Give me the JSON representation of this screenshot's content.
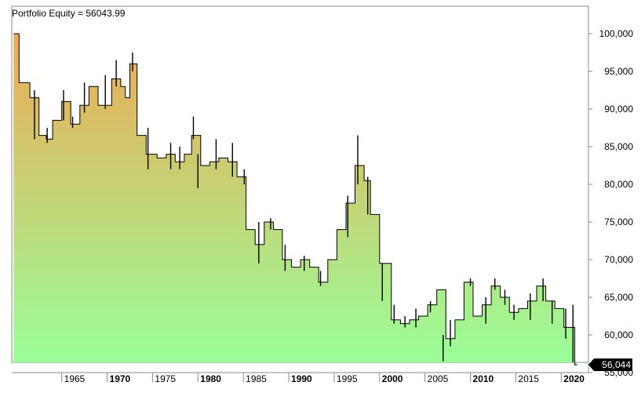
{
  "chart_data": {
    "type": "area",
    "title": "Portfolio Equity = 56043.99",
    "xlabel": "",
    "ylabel": "",
    "last_value_label": "56,044",
    "x_range": [
      1959.5,
      2023
    ],
    "y_range": [
      55000,
      102600
    ],
    "y_ticks": [
      {
        "value": 55000,
        "label": "55,000"
      },
      {
        "value": 60000,
        "label": "60,000"
      },
      {
        "value": 65000,
        "label": "65,000"
      },
      {
        "value": 70000,
        "label": "70,000"
      },
      {
        "value": 75000,
        "label": "75,000"
      },
      {
        "value": 80000,
        "label": "80,000"
      },
      {
        "value": 85000,
        "label": "85,000"
      },
      {
        "value": 90000,
        "label": "90,000"
      },
      {
        "value": 95000,
        "label": "95,000"
      },
      {
        "value": 100000,
        "label": "100,000"
      }
    ],
    "x_ticks": [
      {
        "value": 1965,
        "label": "1965",
        "bold": false
      },
      {
        "value": 1970,
        "label": "1970",
        "bold": true
      },
      {
        "value": 1975,
        "label": "1975",
        "bold": false
      },
      {
        "value": 1980,
        "label": "1980",
        "bold": true
      },
      {
        "value": 1985,
        "label": "1985",
        "bold": false
      },
      {
        "value": 1990,
        "label": "1990",
        "bold": true
      },
      {
        "value": 1995,
        "label": "1995",
        "bold": false
      },
      {
        "value": 2000,
        "label": "2000",
        "bold": true
      },
      {
        "value": 2005,
        "label": "2005",
        "bold": false
      },
      {
        "value": 2010,
        "label": "2010",
        "bold": true
      },
      {
        "value": 2015,
        "label": "2015",
        "bold": false
      },
      {
        "value": 2020,
        "label": "2020",
        "bold": true
      }
    ],
    "colors": {
      "top": "#eeaa55",
      "bottom": "#99ff99",
      "line": "#000000",
      "label_bg": "#000000",
      "label_fg": "#ffffff",
      "axis": "#888888"
    },
    "series": [
      {
        "points": [
          {
            "x": 1959.7,
            "y": 100000
          },
          {
            "x": 1960.3,
            "y": 93500
          },
          {
            "x": 1961.5,
            "y": 91500
          },
          {
            "x": 1962.5,
            "y": 86500
          },
          {
            "x": 1963.3,
            "y": 86000
          },
          {
            "x": 1964.0,
            "y": 88500
          },
          {
            "x": 1965.0,
            "y": 91000
          },
          {
            "x": 1966.0,
            "y": 88000
          },
          {
            "x": 1967.0,
            "y": 90500
          },
          {
            "x": 1968.0,
            "y": 93000
          },
          {
            "x": 1969.0,
            "y": 90500
          },
          {
            "x": 1970.5,
            "y": 94000
          },
          {
            "x": 1971.5,
            "y": 93000
          },
          {
            "x": 1972.0,
            "y": 91500
          },
          {
            "x": 1972.5,
            "y": 96000
          },
          {
            "x": 1973.3,
            "y": 86500
          },
          {
            "x": 1974.3,
            "y": 84000
          },
          {
            "x": 1975.5,
            "y": 83500
          },
          {
            "x": 1976.5,
            "y": 84000
          },
          {
            "x": 1977.5,
            "y": 83000
          },
          {
            "x": 1978.5,
            "y": 84000
          },
          {
            "x": 1979.3,
            "y": 86500
          },
          {
            "x": 1980.3,
            "y": 82500
          },
          {
            "x": 1981.3,
            "y": 83000
          },
          {
            "x": 1982.3,
            "y": 83500
          },
          {
            "x": 1983.3,
            "y": 83000
          },
          {
            "x": 1984.3,
            "y": 81000
          },
          {
            "x": 1985.3,
            "y": 74000
          },
          {
            "x": 1986.3,
            "y": 72000
          },
          {
            "x": 1987.3,
            "y": 75000
          },
          {
            "x": 1988.3,
            "y": 74000
          },
          {
            "x": 1989.3,
            "y": 70000
          },
          {
            "x": 1990.3,
            "y": 69000
          },
          {
            "x": 1991.3,
            "y": 70000
          },
          {
            "x": 1992.3,
            "y": 69000
          },
          {
            "x": 1993.3,
            "y": 67000
          },
          {
            "x": 1994.3,
            "y": 70000
          },
          {
            "x": 1995.3,
            "y": 74000
          },
          {
            "x": 1996.3,
            "y": 77500
          },
          {
            "x": 1997.3,
            "y": 82500
          },
          {
            "x": 1998.3,
            "y": 80500
          },
          {
            "x": 1999.0,
            "y": 76000
          },
          {
            "x": 2000.0,
            "y": 69500
          },
          {
            "x": 2001.3,
            "y": 62000
          },
          {
            "x": 2002.3,
            "y": 61500
          },
          {
            "x": 2003.3,
            "y": 62000
          },
          {
            "x": 2004.3,
            "y": 62500
          },
          {
            "x": 2005.3,
            "y": 64000
          },
          {
            "x": 2006.3,
            "y": 66000
          },
          {
            "x": 2007.3,
            "y": 59500
          },
          {
            "x": 2008.3,
            "y": 62000
          },
          {
            "x": 2009.3,
            "y": 67000
          },
          {
            "x": 2010.3,
            "y": 62500
          },
          {
            "x": 2011.3,
            "y": 64000
          },
          {
            "x": 2012.3,
            "y": 66500
          },
          {
            "x": 2013.3,
            "y": 65000
          },
          {
            "x": 2014.3,
            "y": 63000
          },
          {
            "x": 2015.3,
            "y": 63500
          },
          {
            "x": 2016.3,
            "y": 64500
          },
          {
            "x": 2017.3,
            "y": 66500
          },
          {
            "x": 2018.3,
            "y": 64500
          },
          {
            "x": 2019.3,
            "y": 63500
          },
          {
            "x": 2020.3,
            "y": 61000
          },
          {
            "x": 2021.5,
            "y": 56044
          }
        ],
        "spikes": [
          {
            "x": 1962.0,
            "lo": 86000,
            "hi": 92500
          },
          {
            "x": 1963.4,
            "lo": 85500,
            "hi": 87500
          },
          {
            "x": 1965.2,
            "lo": 88500,
            "hi": 92500
          },
          {
            "x": 1966.2,
            "lo": 87500,
            "hi": 89000
          },
          {
            "x": 1967.5,
            "lo": 89500,
            "hi": 93500
          },
          {
            "x": 1969.8,
            "lo": 90000,
            "hi": 94500
          },
          {
            "x": 1971.0,
            "lo": 93000,
            "hi": 96500
          },
          {
            "x": 1972.8,
            "lo": 95000,
            "hi": 97500
          },
          {
            "x": 1974.5,
            "lo": 82000,
            "hi": 87500
          },
          {
            "x": 1977.0,
            "lo": 82000,
            "hi": 85500
          },
          {
            "x": 1978.0,
            "lo": 82000,
            "hi": 85000
          },
          {
            "x": 1979.5,
            "lo": 86000,
            "hi": 89000
          },
          {
            "x": 1980.0,
            "lo": 79500,
            "hi": 84000
          },
          {
            "x": 1982.0,
            "lo": 82000,
            "hi": 86000
          },
          {
            "x": 1983.8,
            "lo": 81000,
            "hi": 85500
          },
          {
            "x": 1985.1,
            "lo": 80000,
            "hi": 82000
          },
          {
            "x": 1986.7,
            "lo": 69500,
            "hi": 75000
          },
          {
            "x": 1988.0,
            "lo": 74000,
            "hi": 75500
          },
          {
            "x": 1989.6,
            "lo": 68500,
            "hi": 72000
          },
          {
            "x": 1991.7,
            "lo": 68500,
            "hi": 70500
          },
          {
            "x": 1993.5,
            "lo": 66500,
            "hi": 68500
          },
          {
            "x": 1996.5,
            "lo": 73000,
            "hi": 78500
          },
          {
            "x": 1997.6,
            "lo": 80000,
            "hi": 86500
          },
          {
            "x": 1998.7,
            "lo": 76000,
            "hi": 81000
          },
          {
            "x": 2000.3,
            "lo": 64500,
            "hi": 69500
          },
          {
            "x": 2001.6,
            "lo": 61500,
            "hi": 64000
          },
          {
            "x": 2002.8,
            "lo": 61000,
            "hi": 62500
          },
          {
            "x": 2004.0,
            "lo": 61000,
            "hi": 63500
          },
          {
            "x": 2005.6,
            "lo": 63000,
            "hi": 64500
          },
          {
            "x": 2007.0,
            "lo": 56500,
            "hi": 60000
          },
          {
            "x": 2007.8,
            "lo": 58500,
            "hi": 62000
          },
          {
            "x": 2010.0,
            "lo": 66500,
            "hi": 67500
          },
          {
            "x": 2011.7,
            "lo": 61500,
            "hi": 65000
          },
          {
            "x": 2012.7,
            "lo": 66000,
            "hi": 67500
          },
          {
            "x": 2013.8,
            "lo": 64000,
            "hi": 66000
          },
          {
            "x": 2014.8,
            "lo": 62000,
            "hi": 64000
          },
          {
            "x": 2016.6,
            "lo": 62000,
            "hi": 65500
          },
          {
            "x": 2018.0,
            "lo": 64500,
            "hi": 67500
          },
          {
            "x": 2019.0,
            "lo": 61500,
            "hi": 64500
          },
          {
            "x": 2020.5,
            "lo": 59500,
            "hi": 63500
          },
          {
            "x": 2021.3,
            "lo": 56044,
            "hi": 64000
          }
        ]
      }
    ]
  }
}
